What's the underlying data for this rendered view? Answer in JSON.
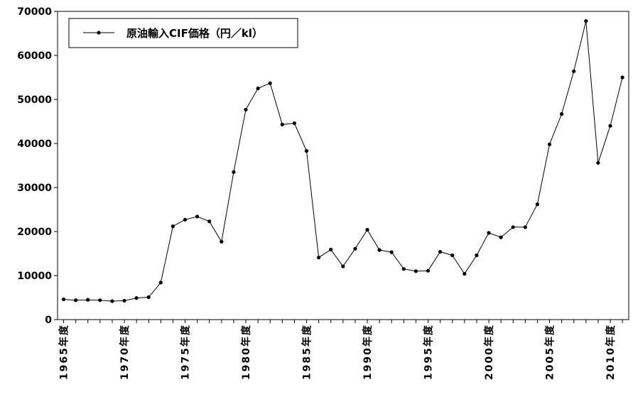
{
  "chart_data": {
    "type": "line",
    "title": "",
    "xlabel": "",
    "ylabel": "",
    "ylim": [
      0,
      70000
    ],
    "yticks": [
      0,
      10000,
      20000,
      30000,
      40000,
      50000,
      60000,
      70000
    ],
    "grid": false,
    "legend_position": "top-left",
    "x_tick_labels": [
      "1965年度",
      "1970年度",
      "1975年度",
      "1980年度",
      "1985年度",
      "1990年度",
      "1995年度",
      "2000年度",
      "2005年度",
      "2010年度"
    ],
    "x_tick_years": [
      1965,
      1970,
      1975,
      1980,
      1985,
      1990,
      1995,
      2000,
      2005,
      2010
    ],
    "x": [
      1965,
      1966,
      1967,
      1968,
      1969,
      1970,
      1971,
      1972,
      1973,
      1974,
      1975,
      1976,
      1977,
      1978,
      1979,
      1980,
      1981,
      1982,
      1983,
      1984,
      1985,
      1986,
      1987,
      1988,
      1989,
      1990,
      1991,
      1992,
      1993,
      1994,
      1995,
      1996,
      1997,
      1998,
      1999,
      2000,
      2001,
      2002,
      2003,
      2004,
      2005,
      2006,
      2007,
      2008,
      2009,
      2010,
      2011
    ],
    "series": [
      {
        "name": "原油輸入CIF価格（円／kl）",
        "color": "#000000",
        "values": [
          4600,
          4400,
          4500,
          4400,
          4200,
          4300,
          4900,
          5100,
          8400,
          21200,
          22700,
          23400,
          22300,
          17700,
          33500,
          47700,
          52500,
          53700,
          44300,
          44600,
          38300,
          14100,
          15900,
          12100,
          16100,
          20400,
          15800,
          15300,
          11500,
          11000,
          11100,
          15400,
          14600,
          10400,
          14600,
          19700,
          18700,
          21000,
          21000,
          26200,
          39800,
          46700,
          56400,
          67800,
          35600,
          44000,
          55000
        ]
      }
    ]
  }
}
